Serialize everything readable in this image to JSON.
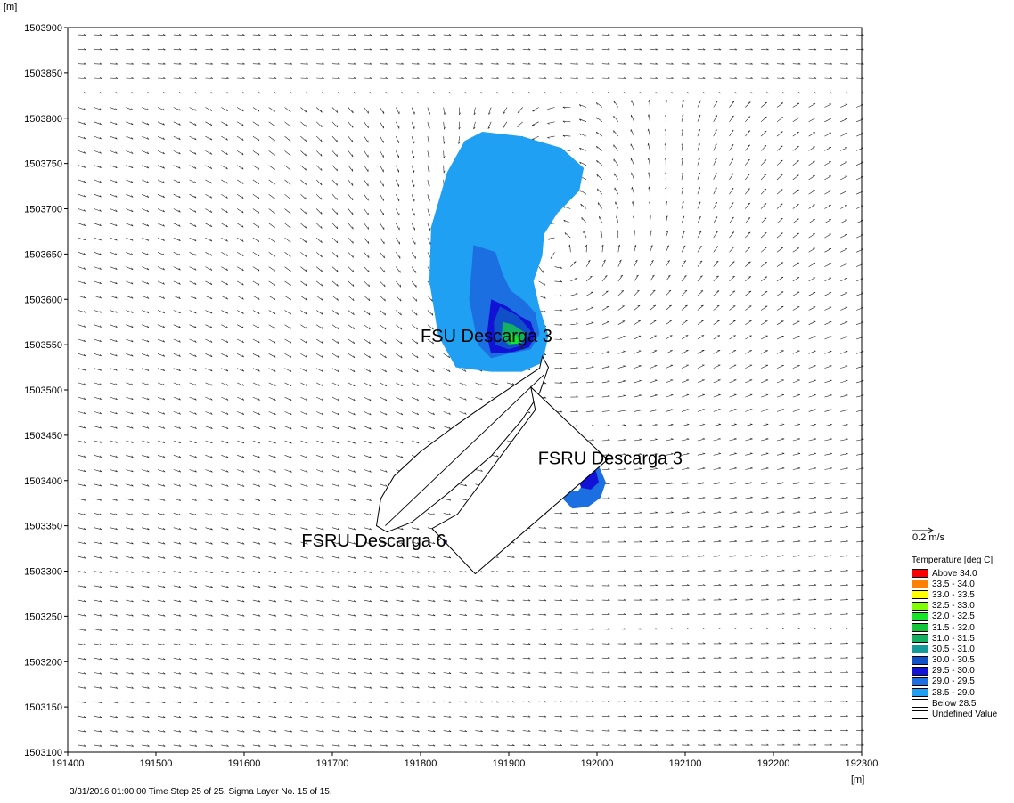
{
  "chart_data": {
    "type": "heatmap",
    "title": "",
    "xlabel": "[m]",
    "ylabel": "[m]",
    "xlim": [
      191400,
      192300
    ],
    "ylim": [
      1503100,
      1503900
    ],
    "x_ticks": [
      "191400",
      "191500",
      "191600",
      "191700",
      "191800",
      "191900",
      "192000",
      "192100",
      "192200",
      "192300"
    ],
    "y_ticks": [
      "1503900",
      "1503850",
      "1503800",
      "1503750",
      "1503700",
      "1503650",
      "1503600",
      "1503550",
      "1503500",
      "1503450",
      "1503400",
      "1503350",
      "1503300",
      "1503250",
      "1503200",
      "1503150",
      "1503100"
    ],
    "annotations": [
      {
        "text": "FSU Descarga 3",
        "x": 191800,
        "y": 1503553
      },
      {
        "text": "FSRU Descarga 3",
        "x": 191933,
        "y": 1503418
      },
      {
        "text": "FSRU Descarga 6",
        "x": 191665,
        "y": 1503327
      }
    ],
    "plume_regions": [
      {
        "level": "28.5 - 29.0",
        "color": "#1fa0f2",
        "points": [
          [
            191870,
            1503785
          ],
          [
            191915,
            1503780
          ],
          [
            191960,
            1503767
          ],
          [
            191985,
            1503745
          ],
          [
            191980,
            1503720
          ],
          [
            191955,
            1503695
          ],
          [
            191940,
            1503672
          ],
          [
            191938,
            1503648
          ],
          [
            191928,
            1503620
          ],
          [
            191935,
            1503590
          ],
          [
            191945,
            1503560
          ],
          [
            191938,
            1503530
          ],
          [
            191915,
            1503520
          ],
          [
            191880,
            1503520
          ],
          [
            191840,
            1503525
          ],
          [
            191820,
            1503560
          ],
          [
            191810,
            1503620
          ],
          [
            191812,
            1503680
          ],
          [
            191830,
            1503740
          ],
          [
            191850,
            1503775
          ]
        ]
      },
      {
        "level": "29.0 - 29.5",
        "color": "#1b6fe0",
        "points": [
          [
            191860,
            1503660
          ],
          [
            191885,
            1503652
          ],
          [
            191893,
            1503628
          ],
          [
            191902,
            1503610
          ],
          [
            191918,
            1503598
          ],
          [
            191930,
            1503585
          ],
          [
            191935,
            1503562
          ],
          [
            191925,
            1503545
          ],
          [
            191900,
            1503540
          ],
          [
            191880,
            1503535
          ],
          [
            191865,
            1503550
          ],
          [
            191855,
            1503600
          ]
        ]
      },
      {
        "level": "29.0 - 29.5",
        "color": "#1b6fe0",
        "points": [
          [
            191990,
            1503423
          ],
          [
            192003,
            1503414
          ],
          [
            192010,
            1503398
          ],
          [
            192004,
            1503381
          ],
          [
            191990,
            1503371
          ],
          [
            191972,
            1503369
          ],
          [
            191962,
            1503379
          ],
          [
            191966,
            1503388
          ],
          [
            191978,
            1503388
          ],
          [
            191985,
            1503396
          ],
          [
            191980,
            1503405
          ],
          [
            191969,
            1503407
          ],
          [
            191958,
            1503412
          ],
          [
            191965,
            1503420
          ]
        ]
      },
      {
        "level": "29.5 - 30.0",
        "color": "#1212d6",
        "points": [
          [
            191880,
            1503600
          ],
          [
            191898,
            1503592
          ],
          [
            191912,
            1503582
          ],
          [
            191925,
            1503575
          ],
          [
            191930,
            1503560
          ],
          [
            191923,
            1503547
          ],
          [
            191905,
            1503542
          ],
          [
            191880,
            1503540
          ],
          [
            191875,
            1503560
          ]
        ]
      },
      {
        "level": "29.5 - 30.0",
        "color": "#1212d6",
        "points": [
          [
            191988,
            1503419
          ],
          [
            191999,
            1503410
          ],
          [
            192002,
            1503398
          ],
          [
            191993,
            1503390
          ],
          [
            191982,
            1503392
          ],
          [
            191978,
            1503403
          ],
          [
            191970,
            1503410
          ],
          [
            191978,
            1503417
          ]
        ]
      },
      {
        "level": "30.0 - 30.5",
        "color": "#0f50c8",
        "points": [
          [
            191890,
            1503592
          ],
          [
            191910,
            1503582
          ],
          [
            191925,
            1503565
          ],
          [
            191918,
            1503550
          ],
          [
            191900,
            1503545
          ],
          [
            191884,
            1503550
          ],
          [
            191883,
            1503575
          ]
        ]
      },
      {
        "level": "31.0 - 31.5",
        "color": "#12b060",
        "points": [
          [
            191893,
            1503575
          ],
          [
            191905,
            1503572
          ],
          [
            191920,
            1503562
          ],
          [
            191915,
            1503552
          ],
          [
            191900,
            1503550
          ],
          [
            191892,
            1503557
          ]
        ]
      },
      {
        "level": "32.0 - 32.5",
        "color": "#13e626",
        "points": [
          [
            191903,
            1503563
          ],
          [
            191912,
            1503558
          ],
          [
            191910,
            1503551
          ],
          [
            191903,
            1503551
          ],
          [
            191900,
            1503556
          ]
        ]
      }
    ],
    "structures": [
      {
        "name": "fsru-hull",
        "points": [
          [
            191938,
            1503537
          ],
          [
            191935,
            1503524
          ],
          [
            191915,
            1503511
          ],
          [
            191880,
            1503488
          ],
          [
            191840,
            1503461
          ],
          [
            191800,
            1503432
          ],
          [
            191770,
            1503405
          ],
          [
            191755,
            1503380
          ],
          [
            191750,
            1503350
          ],
          [
            191762,
            1503343
          ],
          [
            191790,
            1503354
          ],
          [
            191830,
            1503385
          ],
          [
            191880,
            1503427
          ],
          [
            191915,
            1503467
          ],
          [
            191935,
            1503497
          ],
          [
            191945,
            1503525
          ]
        ]
      },
      {
        "name": "fsru-inner-line",
        "points": [
          [
            191940,
            1503517
          ],
          [
            191760,
            1503350
          ]
        ]
      },
      {
        "name": "moored-vessel",
        "points": [
          [
            191925,
            1503503
          ],
          [
            192012,
            1503423
          ],
          [
            191862,
            1503297
          ],
          [
            191813,
            1503347
          ],
          [
            191842,
            1503363
          ],
          [
            191930,
            1503478
          ]
        ]
      }
    ],
    "point_markers": [
      {
        "name": "FSU Descarga 3",
        "x": 191915,
        "y": 1503547
      },
      {
        "name": "FSRU Descarga 6",
        "x": 191828,
        "y": 1503332
      }
    ],
    "vector_scale_label": "0.2 m/s",
    "legend_title": "Temperature [deg C]",
    "legend": [
      {
        "label": "Above 34.0",
        "color": "#ff0000"
      },
      {
        "label": "33.5 - 34.0",
        "color": "#ff8000"
      },
      {
        "label": "33.0 - 33.5",
        "color": "#ffff00"
      },
      {
        "label": "32.5 - 33.0",
        "color": "#80ff00"
      },
      {
        "label": "32.0 - 32.5",
        "color": "#13e626"
      },
      {
        "label": "31.5 - 32.0",
        "color": "#12c83a"
      },
      {
        "label": "31.0 - 31.5",
        "color": "#12b060"
      },
      {
        "label": "30.5 - 31.0",
        "color": "#139a9a"
      },
      {
        "label": "30.0 - 30.5",
        "color": "#0f50c8"
      },
      {
        "label": "29.5 - 30.0",
        "color": "#1212d6"
      },
      {
        "label": "29.0 - 29.5",
        "color": "#1b6fe0"
      },
      {
        "label": "28.5 - 29.0",
        "color": "#1fa0f2"
      },
      {
        "label": "Below 28.5",
        "color": "#ffffff"
      },
      {
        "label": "Undefined Value",
        "color": "#ffffff"
      }
    ],
    "footer": "3/31/2016 01:00:00  Time Step 25 of 25. Sigma Layer No. 15 of 15."
  }
}
